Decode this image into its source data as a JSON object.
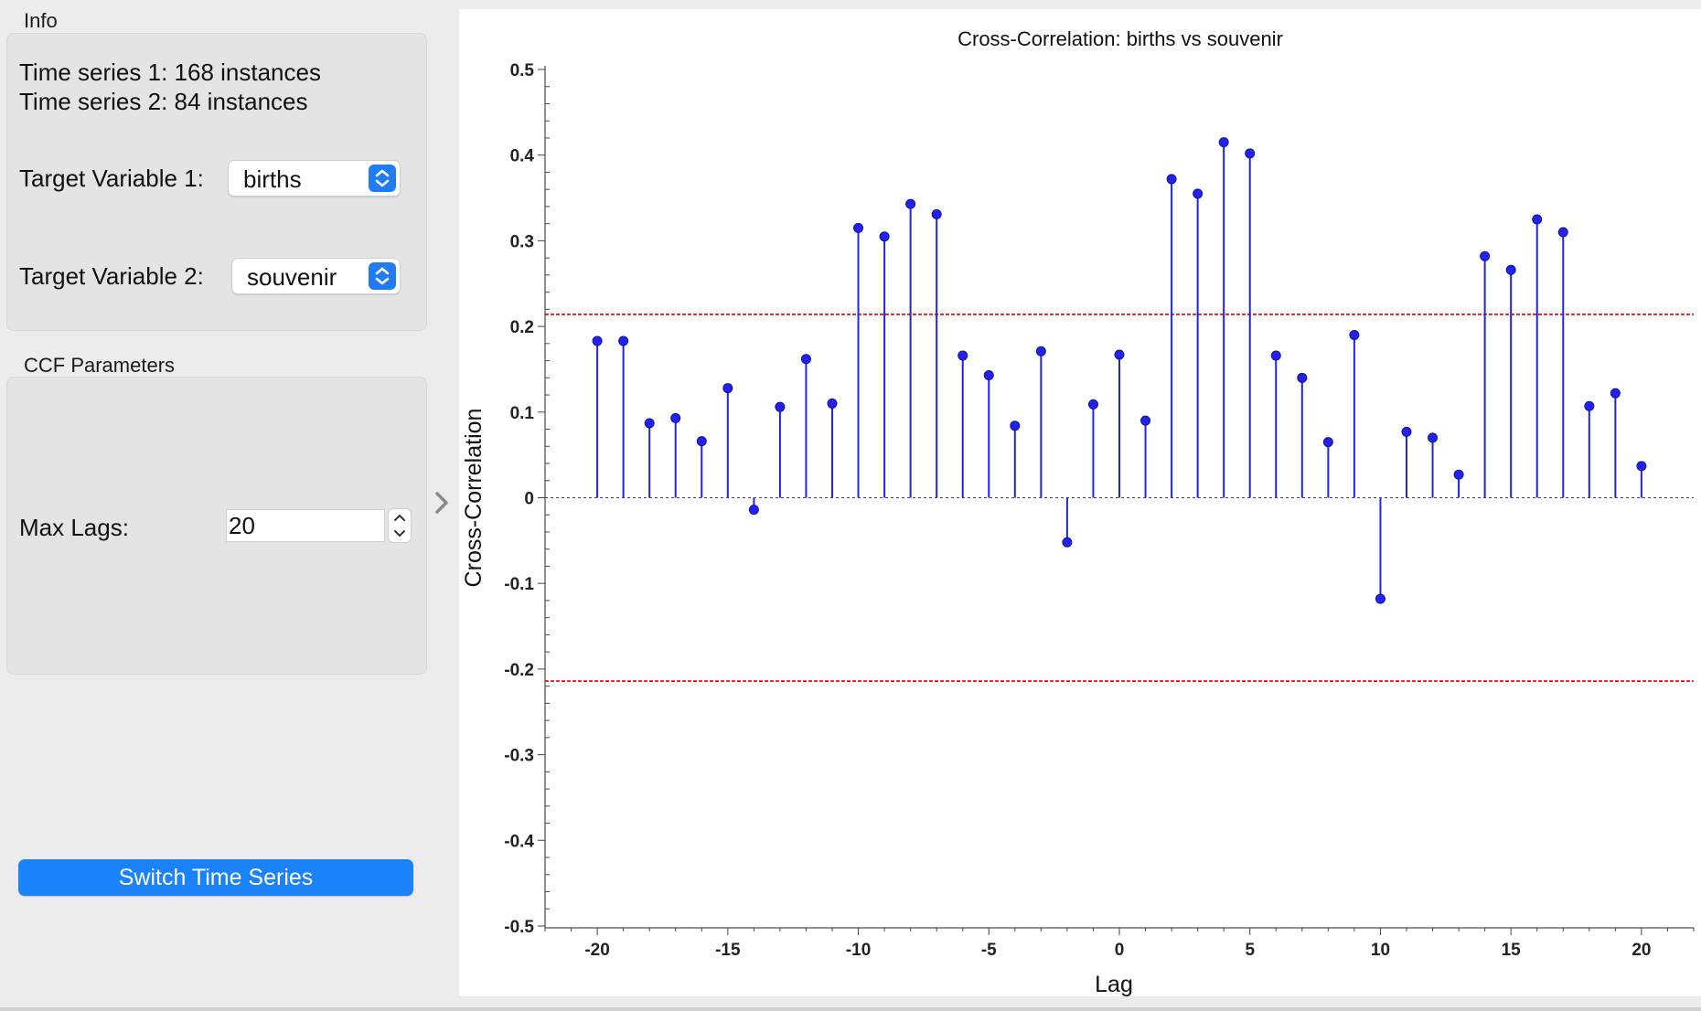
{
  "info": {
    "section_title": "Info",
    "ts1": "Time series 1: 168 instances",
    "ts2": "Time series 2: 84 instances",
    "target1_label": "Target Variable 1:",
    "target1_value": "births",
    "target2_label": "Target Variable 2:",
    "target2_value": "souvenir"
  },
  "params": {
    "section_title": "CCF Parameters",
    "max_lags_label": "Max Lags:",
    "max_lags_value": "20"
  },
  "switch_button_label": "Switch Time Series",
  "colors": {
    "accent": "#1a82fb",
    "stem": "#2222ee",
    "confidence": "#e00000"
  },
  "chart_data": {
    "type": "stem",
    "title": "Cross-Correlation: births vs souvenir",
    "xlabel": "Lag",
    "ylabel": "Cross-Correlation",
    "ylim": [
      -0.5,
      0.5
    ],
    "xlim": [
      -22,
      22
    ],
    "xticks": [
      "-20",
      "-15",
      "-10",
      "-5",
      "0",
      "5",
      "10",
      "15",
      "20"
    ],
    "yticks": [
      "0.5",
      "0.4",
      "0.3",
      "0.2",
      "0.1",
      "0",
      "-0.1",
      "-0.2",
      "-0.3",
      "-0.4",
      "-0.5"
    ],
    "confidence_upper": 0.214,
    "confidence_lower": -0.214,
    "grid": false,
    "x": [
      -20,
      -19,
      -18,
      -17,
      -16,
      -15,
      -14,
      -13,
      -12,
      -11,
      -10,
      -9,
      -8,
      -7,
      -6,
      -5,
      -4,
      -3,
      -2,
      -1,
      0,
      1,
      2,
      3,
      4,
      5,
      6,
      7,
      8,
      9,
      10,
      11,
      12,
      13,
      14,
      15,
      16,
      17,
      18,
      19,
      20
    ],
    "values": [
      0.183,
      0.183,
      0.087,
      0.093,
      0.066,
      0.128,
      -0.014,
      0.106,
      0.162,
      0.11,
      0.315,
      0.305,
      0.343,
      0.331,
      0.166,
      0.143,
      0.084,
      0.171,
      -0.052,
      0.109,
      0.167,
      0.09,
      0.372,
      0.355,
      0.415,
      0.402,
      0.166,
      0.14,
      0.065,
      0.19,
      -0.118,
      0.077,
      0.07,
      0.027,
      0.282,
      0.266,
      0.325,
      0.31,
      0.107,
      0.122,
      0.037
    ]
  }
}
